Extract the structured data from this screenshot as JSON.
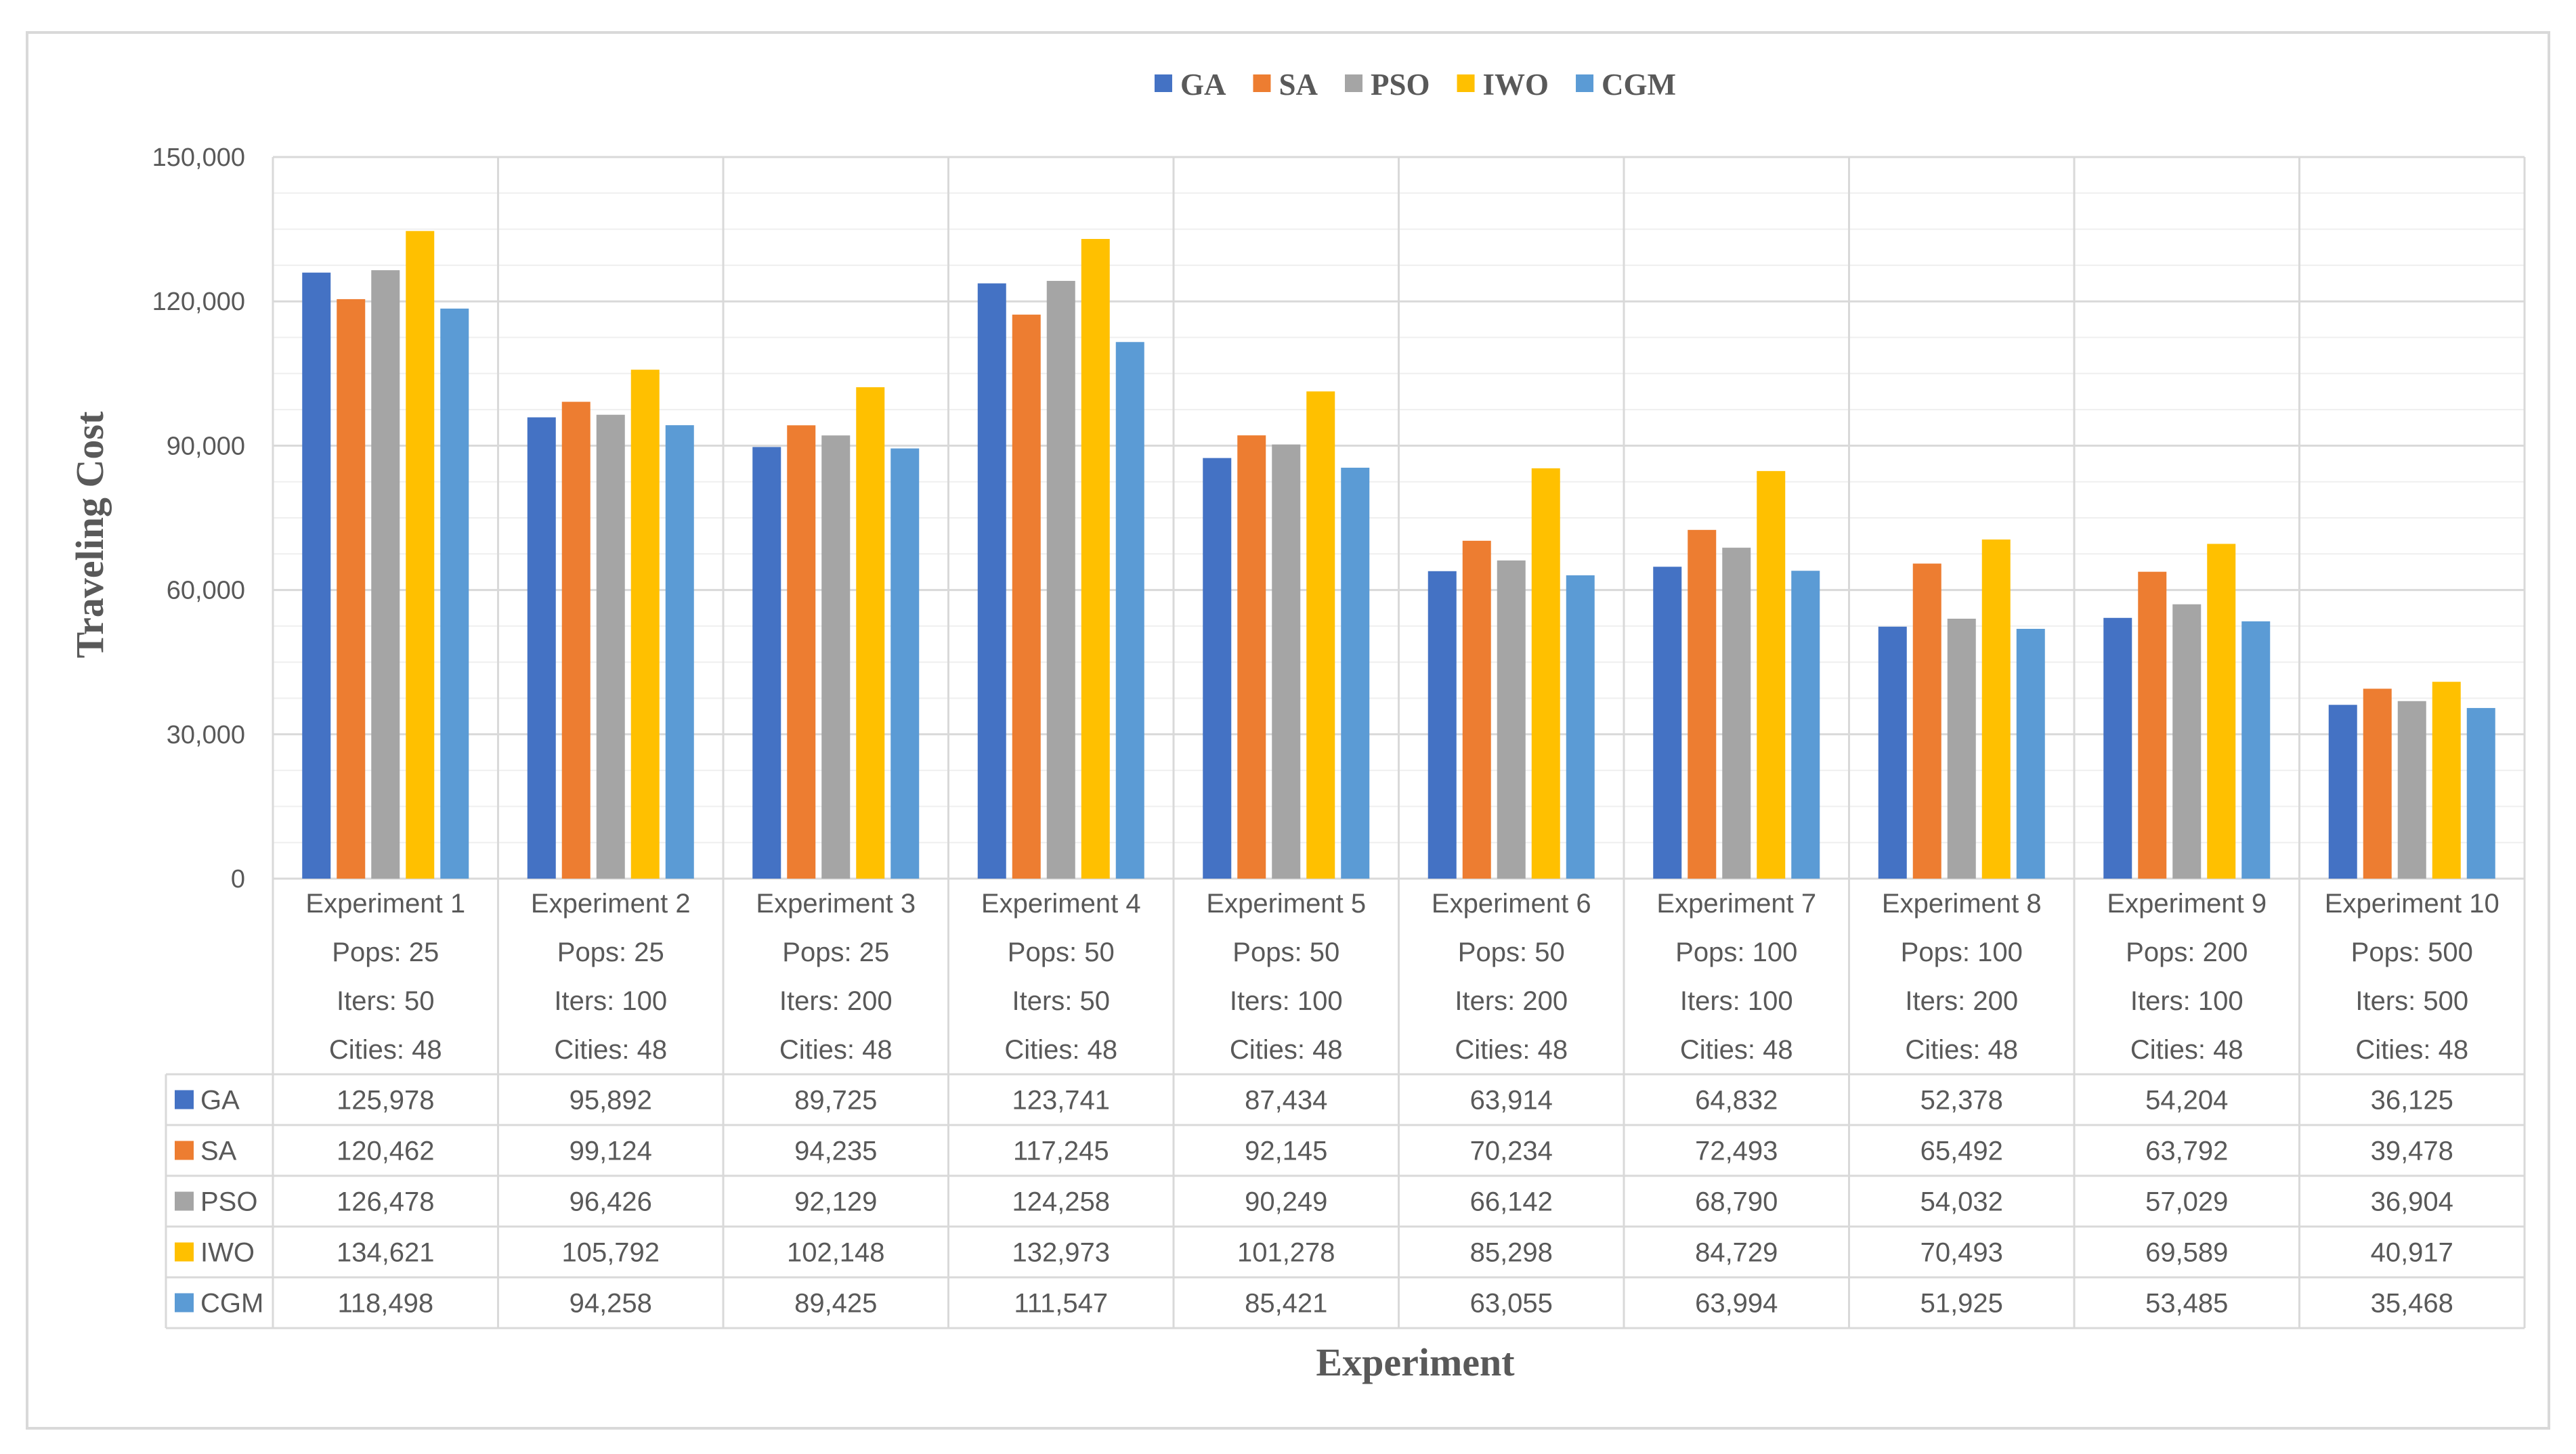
{
  "chart_data": {
    "type": "bar",
    "xlabel": "Experiment",
    "ylabel": "Traveling Cost",
    "ylim": [
      0,
      150000
    ],
    "yticks": [
      "0",
      "30,000",
      "60,000",
      "90,000",
      "120,000",
      "150,000"
    ],
    "ytick_values": [
      0,
      30000,
      60000,
      90000,
      120000,
      150000
    ],
    "grid": true,
    "legend_position": "top",
    "categories": [
      {
        "name": "Experiment 1",
        "pops": "Pops: 25",
        "iters": "Iters: 50",
        "cities": "Cities: 48"
      },
      {
        "name": "Experiment 2",
        "pops": "Pops: 25",
        "iters": "Iters: 100",
        "cities": "Cities: 48"
      },
      {
        "name": "Experiment 3",
        "pops": "Pops: 25",
        "iters": "Iters: 200",
        "cities": "Cities: 48"
      },
      {
        "name": "Experiment 4",
        "pops": "Pops: 50",
        "iters": "Iters: 50",
        "cities": "Cities: 48"
      },
      {
        "name": "Experiment 5",
        "pops": "Pops: 50",
        "iters": "Iters: 100",
        "cities": "Cities: 48"
      },
      {
        "name": "Experiment 6",
        "pops": "Pops: 50",
        "iters": "Iters: 200",
        "cities": "Cities: 48"
      },
      {
        "name": "Experiment 7",
        "pops": "Pops: 100",
        "iters": "Iters: 100",
        "cities": "Cities: 48"
      },
      {
        "name": "Experiment 8",
        "pops": "Pops: 100",
        "iters": "Iters: 200",
        "cities": "Cities: 48"
      },
      {
        "name": "Experiment 9",
        "pops": "Pops: 200",
        "iters": "Iters: 100",
        "cities": "Cities: 48"
      },
      {
        "name": "Experiment 10",
        "pops": "Pops: 500",
        "iters": "Iters: 500",
        "cities": "Cities: 48"
      }
    ],
    "series": [
      {
        "name": "GA",
        "color": "#4472C4",
        "values": [
          125978,
          95892,
          89725,
          123741,
          87434,
          63914,
          64832,
          52378,
          54204,
          36125
        ],
        "labels": [
          "125,978",
          "95,892",
          "89,725",
          "123,741",
          "87,434",
          "63,914",
          "64,832",
          "52,378",
          "54,204",
          "36,125"
        ]
      },
      {
        "name": "SA",
        "color": "#ED7D31",
        "values": [
          120462,
          99124,
          94235,
          117245,
          92145,
          70234,
          72493,
          65492,
          63792,
          39478
        ],
        "labels": [
          "120,462",
          "99,124",
          "94,235",
          "117,245",
          "92,145",
          "70,234",
          "72,493",
          "65,492",
          "63,792",
          "39,478"
        ]
      },
      {
        "name": "PSO",
        "color": "#A5A5A5",
        "values": [
          126478,
          96426,
          92129,
          124258,
          90249,
          66142,
          68790,
          54032,
          57029,
          36904
        ],
        "labels": [
          "126,478",
          "96,426",
          "92,129",
          "124,258",
          "90,249",
          "66,142",
          "68,790",
          "54,032",
          "57,029",
          "36,904"
        ]
      },
      {
        "name": "IWO",
        "color": "#FFC000",
        "values": [
          134621,
          105792,
          102148,
          132973,
          101278,
          85298,
          84729,
          70493,
          69589,
          40917
        ],
        "labels": [
          "134,621",
          "105,792",
          "102,148",
          "132,973",
          "101,278",
          "85,298",
          "84,729",
          "70,493",
          "69,589",
          "40,917"
        ]
      },
      {
        "name": "CGM",
        "color": "#5B9BD5",
        "values": [
          118498,
          94258,
          89425,
          111547,
          85421,
          63055,
          63994,
          51925,
          53485,
          35468
        ],
        "labels": [
          "118,498",
          "94,258",
          "89,425",
          "111,547",
          "85,421",
          "63,055",
          "63,994",
          "51,925",
          "53,485",
          "35,468"
        ]
      }
    ]
  }
}
